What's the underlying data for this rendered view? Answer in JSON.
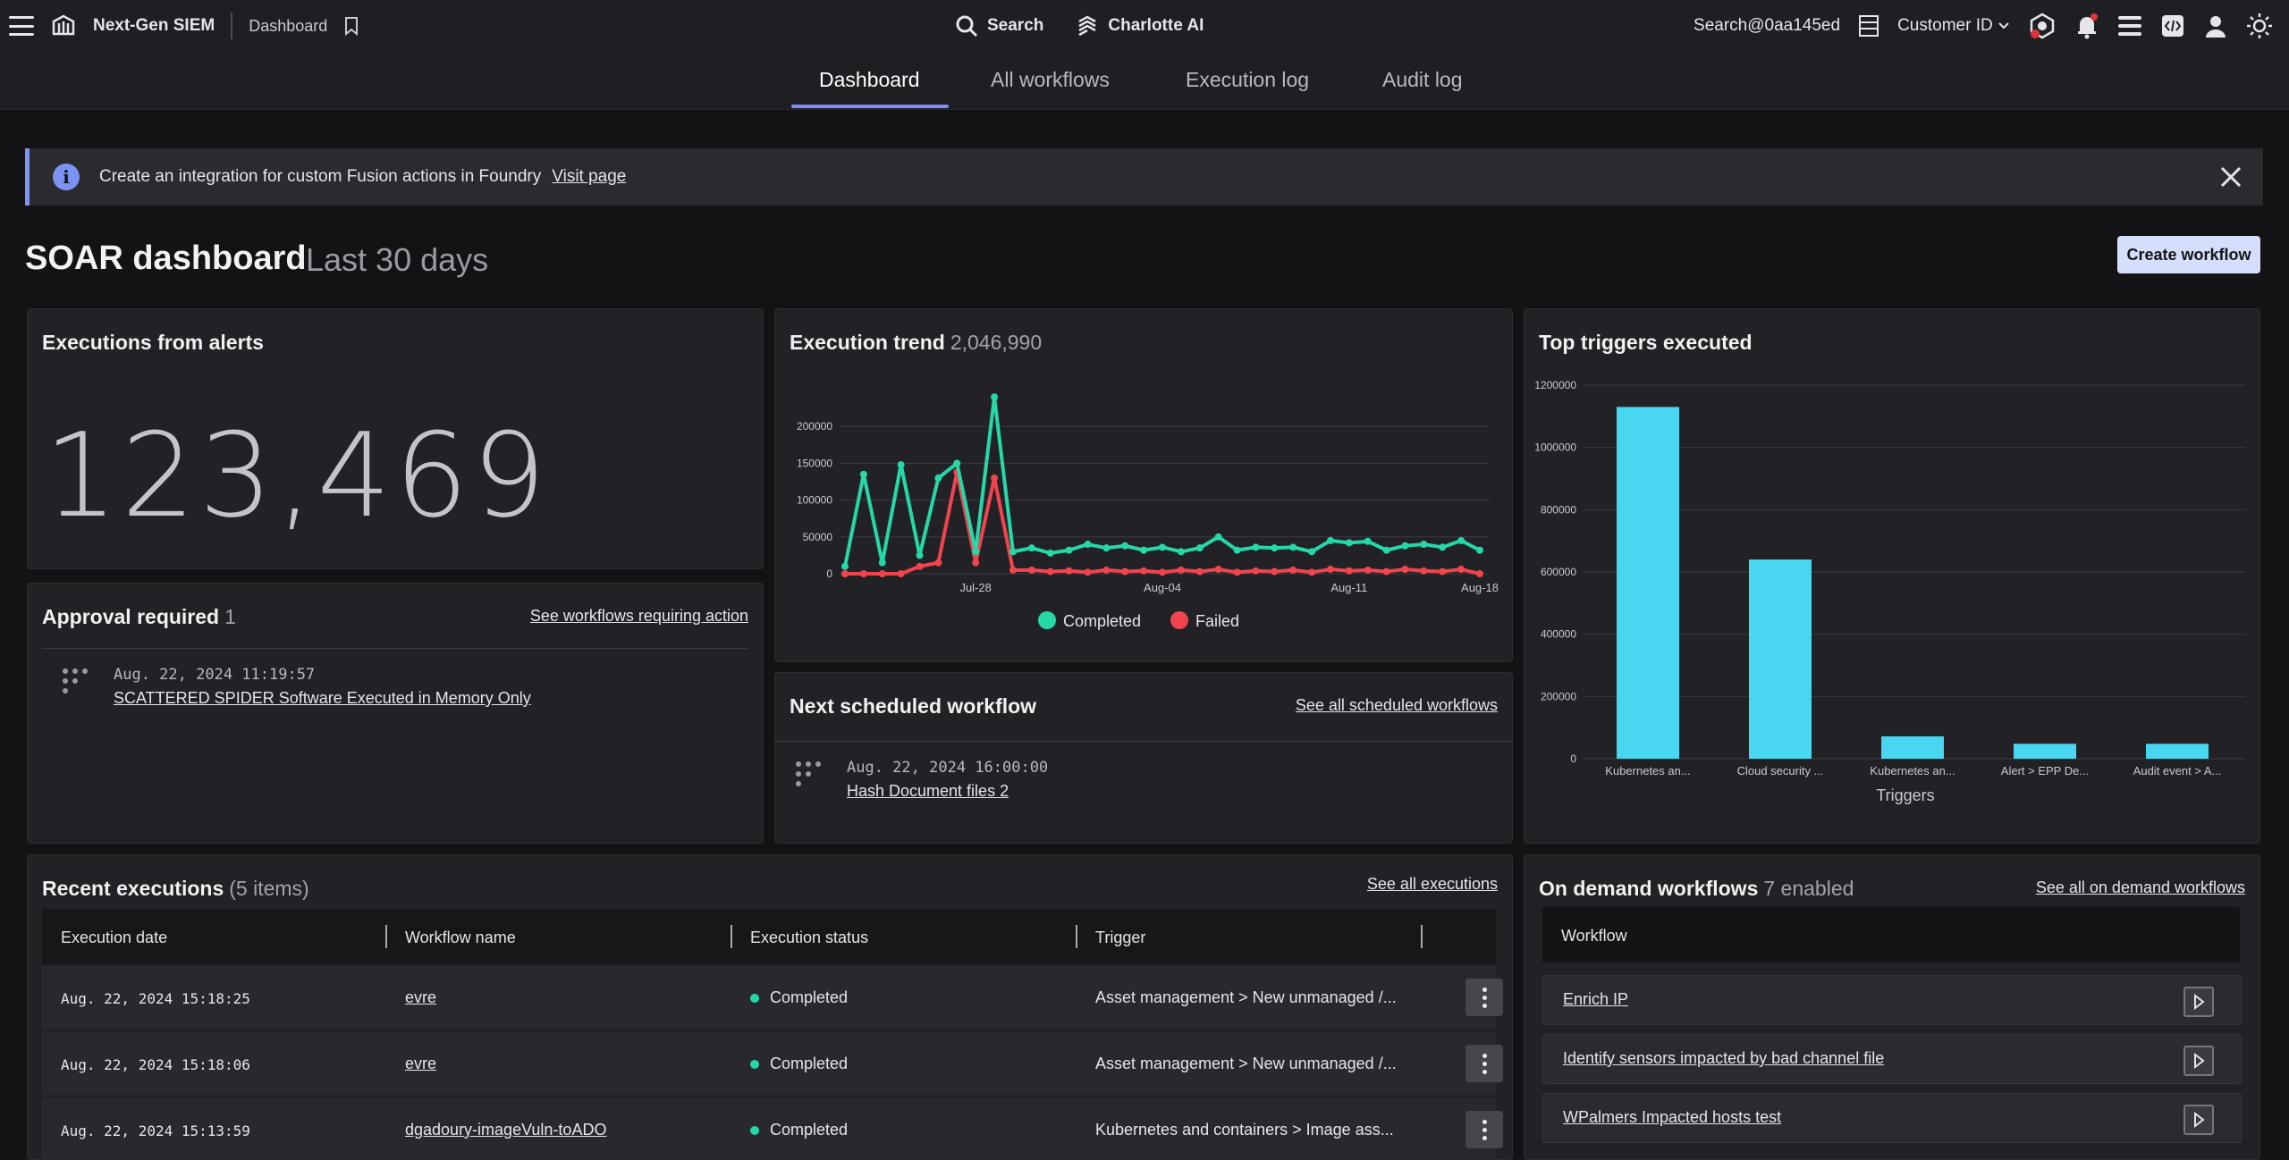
{
  "topbar": {
    "brand": "Next-Gen SIEM",
    "breadcrumb": "Dashboard",
    "search_label": "Search",
    "ai_label": "Charlotte AI",
    "account": "Search@0aa145ed",
    "customer_id_label": "Customer ID"
  },
  "tabs": [
    {
      "label": "Dashboard",
      "active": true
    },
    {
      "label": "All workflows"
    },
    {
      "label": "Execution log"
    },
    {
      "label": "Audit log"
    }
  ],
  "banner": {
    "message": "Create an integration for custom Fusion actions in Foundry",
    "link": "Visit page"
  },
  "header": {
    "title": "SOAR dashboard",
    "subtitle": "Last 30 days",
    "create_button": "Create workflow"
  },
  "executions_from_alerts": {
    "title": "Executions from alerts",
    "value": "123,469"
  },
  "approval": {
    "title": "Approval required",
    "count": "1",
    "link": "See workflows requiring action",
    "items": [
      {
        "time": "Aug. 22, 2024 11:19:57",
        "name": "SCATTERED SPIDER Software Executed in Memory Only"
      }
    ]
  },
  "trend": {
    "title": "Execution trend",
    "total": "2,046,990",
    "legend": [
      "Completed",
      "Failed"
    ]
  },
  "next_scheduled": {
    "title": "Next scheduled workflow",
    "link": "See all scheduled workflows",
    "time": "Aug. 22, 2024 16:00:00",
    "name": "Hash Document files 2"
  },
  "top_triggers": {
    "title": "Top triggers executed",
    "xlabel": "Triggers"
  },
  "recent": {
    "title": "Recent executions",
    "count": "(5 items)",
    "link": "See all executions",
    "columns": [
      "Execution date",
      "Workflow name",
      "Execution status",
      "Trigger"
    ],
    "rows": [
      {
        "date": "Aug. 22, 2024 15:18:25",
        "workflow": "evre",
        "status": "Completed",
        "trigger": "Asset management > New unmanaged /..."
      },
      {
        "date": "Aug. 22, 2024 15:18:06",
        "workflow": "evre",
        "status": "Completed",
        "trigger": "Asset management > New unmanaged /..."
      },
      {
        "date": "Aug. 22, 2024 15:13:59",
        "workflow": "dgadoury-imageVuln-toADO",
        "status": "Completed",
        "trigger": "Kubernetes and containers > Image ass..."
      }
    ]
  },
  "on_demand": {
    "title": "On demand workflows",
    "count": "7 enabled",
    "link": "See all on demand workflows",
    "column": "Workflow",
    "items": [
      "Enrich IP",
      "Identify sensors impacted by bad channel file",
      "WPalmers Impacted hosts test"
    ]
  },
  "colors": {
    "completed": "#26d7a8",
    "failed": "#f0454f",
    "bar": "#48d6f1",
    "accent": "#7b93f2"
  },
  "chart_data": [
    {
      "type": "line",
      "x_ticks": [
        "Jul-28",
        "Aug-04",
        "Aug-11",
        "Aug-18"
      ],
      "ylim": [
        0,
        250000
      ],
      "y_ticks": [
        0,
        50000,
        100000,
        150000,
        200000
      ],
      "series": [
        {
          "name": "Completed",
          "values": [
            10000,
            135000,
            15000,
            148000,
            25000,
            130000,
            150000,
            30000,
            240000,
            30000,
            35000,
            28000,
            32000,
            40000,
            35000,
            38000,
            32000,
            36000,
            30000,
            35000,
            50000,
            32000,
            36000,
            35000,
            36000,
            30000,
            45000,
            42000,
            44000,
            32000,
            38000,
            40000,
            36000,
            45000,
            32000
          ]
        },
        {
          "name": "Failed",
          "values": [
            0,
            0,
            0,
            0,
            10000,
            15000,
            138000,
            15000,
            130000,
            5000,
            5000,
            3000,
            4000,
            2000,
            5000,
            3000,
            4000,
            2000,
            5000,
            3000,
            6000,
            2000,
            4000,
            3000,
            5000,
            2000,
            6000,
            4000,
            5000,
            3000,
            6000,
            4000,
            3000,
            6000,
            0
          ]
        }
      ],
      "legend": [
        "Completed",
        "Failed"
      ],
      "grid": true,
      "legend_position": "bottom"
    },
    {
      "type": "bar",
      "categories": [
        "Kubernetes an...",
        "Cloud security ...",
        "Kubernetes an...",
        "Alert > EPP De...",
        "Audit event > A..."
      ],
      "values": [
        1130000,
        640000,
        72000,
        48000,
        48000
      ],
      "ylim": [
        0,
        1200000
      ],
      "y_ticks": [
        0,
        200000,
        400000,
        600000,
        800000,
        1000000,
        1200000
      ],
      "xlabel": "Triggers",
      "grid": true
    }
  ]
}
